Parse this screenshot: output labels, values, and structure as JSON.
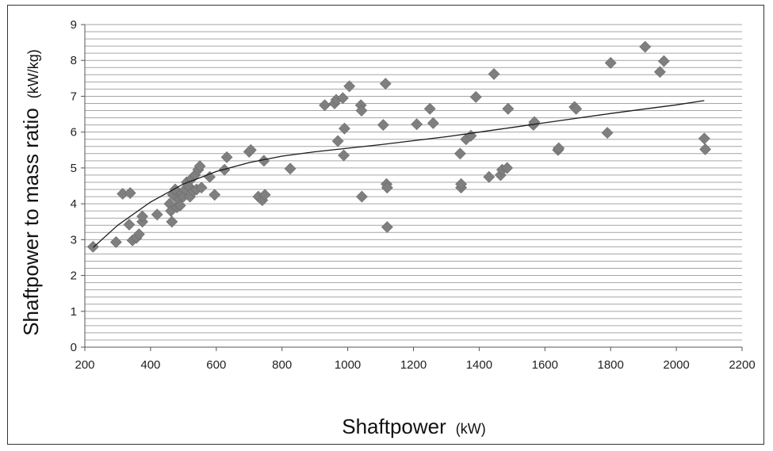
{
  "chart_data": {
    "type": "scatter",
    "xlabel": "Shaftpower",
    "xlabel_unit": "(kW)",
    "ylabel": "Shaftpower to mass ratio",
    "ylabel_unit": "(kW/kg)",
    "xlim": [
      200,
      2200
    ],
    "ylim": [
      0,
      9
    ],
    "x_ticks": [
      200,
      400,
      600,
      800,
      1000,
      1200,
      1400,
      1600,
      1800,
      2000,
      2200
    ],
    "y_ticks": [
      0,
      1,
      2,
      3,
      4,
      5,
      6,
      7,
      8,
      9
    ],
    "minor_grid_step": 0.2,
    "grid": true,
    "marker": "diamond",
    "colors": {
      "marker": "#7f7f7f",
      "trendline": "#1a1a1a",
      "grid": "#a6a6a6"
    },
    "points": [
      [
        225,
        2.8
      ],
      [
        295,
        2.93
      ],
      [
        315,
        4.28
      ],
      [
        338,
        4.3
      ],
      [
        335,
        3.42
      ],
      [
        345,
        2.98
      ],
      [
        357,
        3.05
      ],
      [
        365,
        3.15
      ],
      [
        375,
        3.5
      ],
      [
        375,
        3.65
      ],
      [
        420,
        3.7
      ],
      [
        458,
        4.0
      ],
      [
        462,
        3.8
      ],
      [
        465,
        3.5
      ],
      [
        468,
        4.25
      ],
      [
        475,
        4.4
      ],
      [
        480,
        3.9
      ],
      [
        485,
        4.1
      ],
      [
        490,
        3.95
      ],
      [
        495,
        4.3
      ],
      [
        500,
        4.2
      ],
      [
        505,
        4.4
      ],
      [
        510,
        4.6
      ],
      [
        515,
        4.5
      ],
      [
        520,
        4.2
      ],
      [
        525,
        4.7
      ],
      [
        530,
        4.35
      ],
      [
        535,
        4.8
      ],
      [
        540,
        4.4
      ],
      [
        545,
        4.95
      ],
      [
        550,
        5.05
      ],
      [
        555,
        4.45
      ],
      [
        580,
        4.75
      ],
      [
        595,
        4.25
      ],
      [
        625,
        4.95
      ],
      [
        632,
        5.3
      ],
      [
        700,
        5.45
      ],
      [
        705,
        5.5
      ],
      [
        728,
        4.2
      ],
      [
        740,
        4.1
      ],
      [
        745,
        5.2
      ],
      [
        748,
        4.25
      ],
      [
        825,
        4.98
      ],
      [
        930,
        6.75
      ],
      [
        960,
        6.8
      ],
      [
        965,
        6.9
      ],
      [
        970,
        5.75
      ],
      [
        985,
        6.95
      ],
      [
        988,
        5.35
      ],
      [
        990,
        6.1
      ],
      [
        1005,
        7.28
      ],
      [
        1040,
        6.75
      ],
      [
        1042,
        6.6
      ],
      [
        1043,
        4.2
      ],
      [
        1108,
        6.2
      ],
      [
        1115,
        7.35
      ],
      [
        1118,
        4.55
      ],
      [
        1120,
        4.45
      ],
      [
        1120,
        3.35
      ],
      [
        1210,
        6.22
      ],
      [
        1250,
        6.65
      ],
      [
        1260,
        6.25
      ],
      [
        1342,
        5.4
      ],
      [
        1345,
        4.45
      ],
      [
        1345,
        4.55
      ],
      [
        1360,
        5.8
      ],
      [
        1375,
        5.9
      ],
      [
        1390,
        6.98
      ],
      [
        1430,
        4.75
      ],
      [
        1445,
        7.62
      ],
      [
        1465,
        4.8
      ],
      [
        1470,
        4.95
      ],
      [
        1485,
        5.0
      ],
      [
        1488,
        6.65
      ],
      [
        1565,
        6.2
      ],
      [
        1568,
        6.28
      ],
      [
        1640,
        5.5
      ],
      [
        1642,
        5.55
      ],
      [
        1690,
        6.7
      ],
      [
        1695,
        6.65
      ],
      [
        1790,
        5.98
      ],
      [
        1800,
        7.93
      ],
      [
        1905,
        8.38
      ],
      [
        1950,
        7.68
      ],
      [
        1962,
        7.98
      ],
      [
        2085,
        5.82
      ],
      [
        2088,
        5.52
      ]
    ],
    "trendline": [
      [
        225,
        2.78
      ],
      [
        300,
        3.4
      ],
      [
        400,
        4.05
      ],
      [
        500,
        4.55
      ],
      [
        600,
        4.9
      ],
      [
        700,
        5.15
      ],
      [
        800,
        5.33
      ],
      [
        900,
        5.45
      ],
      [
        1000,
        5.55
      ],
      [
        1100,
        5.65
      ],
      [
        1200,
        5.76
      ],
      [
        1300,
        5.87
      ],
      [
        1400,
        6.0
      ],
      [
        1500,
        6.13
      ],
      [
        1600,
        6.26
      ],
      [
        1700,
        6.39
      ],
      [
        1800,
        6.52
      ],
      [
        1900,
        6.64
      ],
      [
        2000,
        6.76
      ],
      [
        2085,
        6.88
      ]
    ]
  }
}
